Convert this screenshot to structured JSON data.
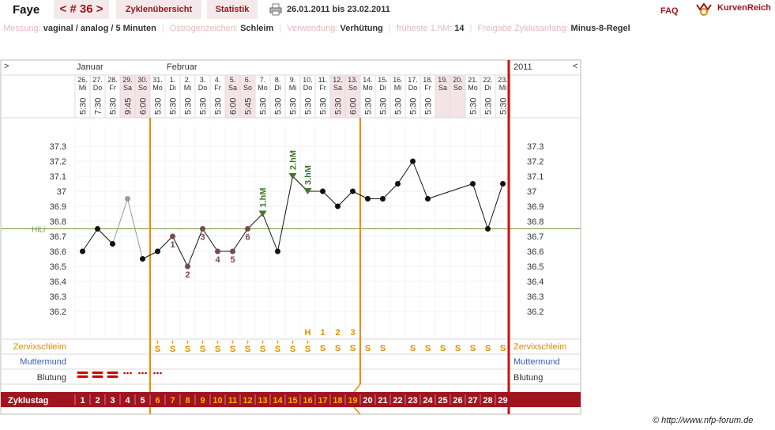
{
  "header": {
    "name": "Faye",
    "cycle_label": "< # 36 >",
    "tab_overview": "Zyklenübersicht",
    "tab_stats": "Statistik",
    "date_range": "26.01.2011 bis 23.02.2011",
    "faq": "FAQ",
    "brand": "KurvenReich"
  },
  "info": [
    {
      "label": "Messung:",
      "value": "vaginal / analog / 5 Minuten"
    },
    {
      "label": "Östrogenzeichen:",
      "value": "Schleim"
    },
    {
      "label": "Verwendung:",
      "value": "Verhütung"
    },
    {
      "label": "früheste 1.hM:",
      "value": "14"
    },
    {
      "label": "Freigabe Zyklusanfang:",
      "value": "Minus-8-Regel"
    }
  ],
  "nav": {
    "left": ">",
    "right": "<",
    "year": "2011"
  },
  "months": [
    {
      "label": "Januar",
      "at_index": 0
    },
    {
      "label": "Februar",
      "at_index": 6
    }
  ],
  "chart_data": {
    "type": "line",
    "title": "",
    "ylabel": "",
    "xlabel": "Zyklustag",
    "ylim": [
      36.1,
      37.4
    ],
    "yticks": [
      "37.3",
      "37.2",
      "37.1",
      "37",
      "36.9",
      "36.8",
      "36.7",
      "36.6",
      "36.5",
      "36.4",
      "36.3",
      "36.2"
    ],
    "dates": [
      "26.",
      "27.",
      "28.",
      "29.",
      "30.",
      "31.",
      "1.",
      "2.",
      "3.",
      "4.",
      "5.",
      "6.",
      "7.",
      "8.",
      "9.",
      "10.",
      "11.",
      "12.",
      "13.",
      "14.",
      "15.",
      "16.",
      "17.",
      "18.",
      "19.",
      "20.",
      "21.",
      "22.",
      "23."
    ],
    "weekdays": [
      "Mi",
      "Do",
      "Fr",
      "Sa",
      "So",
      "Mo",
      "Di",
      "Mi",
      "Do",
      "Fr",
      "Sa",
      "So",
      "Mo",
      "Di",
      "Mi",
      "Do",
      "Fr",
      "Sa",
      "So",
      "Mo",
      "Di",
      "Mi",
      "Do",
      "Fr",
      "Sa",
      "So",
      "Mo",
      "Di",
      "Mi"
    ],
    "times": [
      "5:30",
      "7:30",
      "5:30",
      "9:45",
      "6:00",
      "5:30",
      "5:30",
      "5:30",
      "5:30",
      "5:30",
      "6:00",
      "5:45",
      "5:30",
      "5:30",
      "5:30",
      "5:30",
      "5:30",
      "5:30",
      "6:00",
      "5:30",
      "5:30",
      "5:30",
      "5:30",
      "5:30",
      "",
      "",
      "5:30",
      "5:30",
      "5:30"
    ],
    "weekend_days": [
      3,
      4,
      10,
      11,
      17,
      18,
      24,
      25
    ],
    "cycle_days": [
      "1",
      "2",
      "3",
      "4",
      "5",
      "6",
      "7",
      "8",
      "9",
      "10",
      "11",
      "12",
      "13",
      "14",
      "15",
      "16",
      "17",
      "18",
      "19",
      "20",
      "21",
      "22",
      "23",
      "24",
      "25",
      "26",
      "27",
      "28",
      "29"
    ],
    "temperatures": [
      36.6,
      36.75,
      36.65,
      36.95,
      36.55,
      36.6,
      36.7,
      36.5,
      36.75,
      36.6,
      36.6,
      36.75,
      36.85,
      36.6,
      37.1,
      37.0,
      37.0,
      36.9,
      37.0,
      36.95,
      36.95,
      37.05,
      37.2,
      36.95,
      null,
      null,
      37.05,
      36.75,
      37.05
    ],
    "disregarded": [
      3
    ],
    "low_labels": [
      {
        "day": 7,
        "text": "1"
      },
      {
        "day": 8,
        "text": "2"
      },
      {
        "day": 9,
        "text": "3"
      },
      {
        "day": 10,
        "text": "4"
      },
      {
        "day": 11,
        "text": "5"
      },
      {
        "day": 12,
        "text": "6"
      }
    ],
    "high_markers": [
      {
        "day": 13,
        "text": "1.hM"
      },
      {
        "day": 15,
        "text": "2.hM"
      },
      {
        "day": 16,
        "text": "3.hM"
      }
    ],
    "hili": {
      "label": "HiLi",
      "value": 36.75
    },
    "peak_labels": [
      {
        "day": 16,
        "text": "H"
      },
      {
        "day": 17,
        "text": "1"
      },
      {
        "day": 18,
        "text": "2"
      },
      {
        "day": 19,
        "text": "3"
      }
    ],
    "mucus": [
      "",
      "",
      "",
      "",
      "",
      "+S",
      "+S",
      "+S",
      "+S",
      "+S",
      "+S",
      "+S",
      "+S",
      "+S",
      "+S",
      "+S",
      "S",
      "S",
      "S",
      "S",
      "S",
      "",
      "S",
      "S",
      "S",
      "S",
      "S",
      "S",
      "S"
    ],
    "bleeding": [
      "heavy",
      "heavy",
      "heavy",
      "light",
      "light",
      "light",
      "",
      "",
      "",
      "",
      "",
      "",
      "",
      "",
      "",
      "",
      "",
      "",
      "",
      "",
      "",
      "",
      "",
      "",
      "",
      "",
      "",
      "",
      ""
    ],
    "row_labels": {
      "mucus": "Zervixschleim",
      "cervix": "Muttermund",
      "bleeding": "Blutung",
      "cycle_day": "Zyklustag"
    },
    "fertile_start_day": 6,
    "infertile_start_day": 20,
    "colors": {
      "accent": "#a0141f",
      "orange": "#f08a00",
      "hili": "#6f9a3a",
      "mucus": "#e08a00",
      "cervix": "#3a5bb0",
      "point": "#111111",
      "low": "#7a4a4a"
    }
  },
  "footer": {
    "copyright": "© http://www.nfp-forum.de"
  }
}
